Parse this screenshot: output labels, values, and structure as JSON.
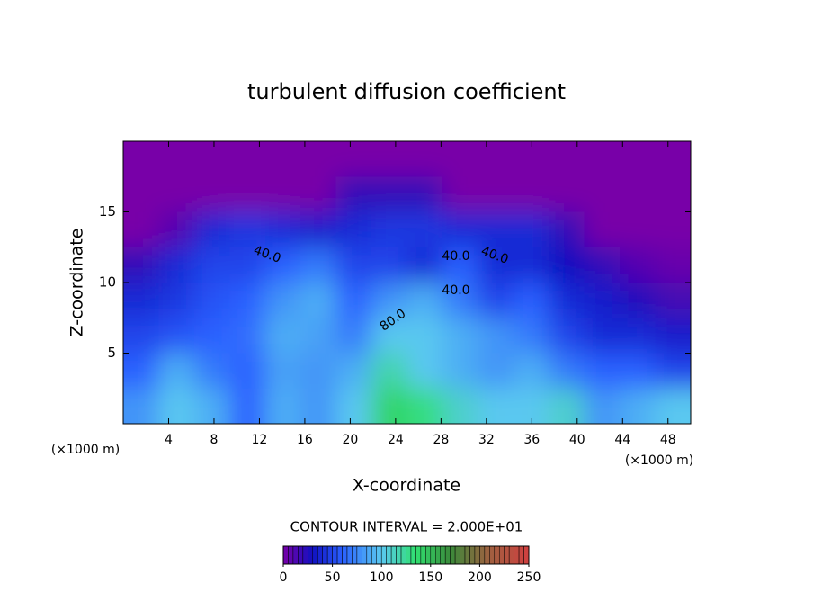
{
  "chart_data": {
    "type": "contour",
    "title": "turbulent diffusion coefficient",
    "xlabel": "X-coordinate",
    "ylabel": "Z-coordinate",
    "x_unit_label": "(×1000 m)",
    "z_unit_label": "(×1000 m)",
    "xlim": [
      0,
      50
    ],
    "ylim": [
      0,
      20
    ],
    "xticks": [
      4,
      8,
      12,
      16,
      20,
      24,
      28,
      32,
      36,
      40,
      44,
      48
    ],
    "yticks": [
      5,
      10,
      15
    ],
    "values": [
      [
        0,
        0,
        0,
        0,
        0,
        0,
        0,
        0,
        0,
        0,
        0,
        0,
        0,
        0,
        0,
        0
      ],
      [
        0,
        0,
        0,
        0,
        0,
        0,
        20,
        20,
        20,
        0,
        0,
        0,
        0,
        0,
        0,
        0
      ],
      [
        0,
        10,
        40,
        45,
        40,
        35,
        40,
        45,
        45,
        40,
        40,
        40,
        20,
        0,
        0,
        0
      ],
      [
        20,
        40,
        50,
        50,
        60,
        70,
        50,
        50,
        40,
        60,
        40,
        40,
        30,
        20,
        10,
        5
      ],
      [
        40,
        45,
        55,
        60,
        80,
        90,
        60,
        80,
        90,
        70,
        50,
        60,
        40,
        35,
        25,
        15
      ],
      [
        50,
        55,
        60,
        65,
        90,
        85,
        70,
        100,
        100,
        90,
        80,
        70,
        50,
        40,
        40,
        35
      ],
      [
        60,
        90,
        70,
        60,
        85,
        80,
        90,
        120,
        100,
        90,
        80,
        90,
        70,
        60,
        60,
        50
      ],
      [
        80,
        100,
        90,
        60,
        90,
        80,
        100,
        140,
        130,
        110,
        100,
        100,
        110,
        80,
        90,
        100
      ]
    ],
    "contour_labels": [
      {
        "value": 40,
        "label": "40.0"
      },
      {
        "value": 40,
        "label": "40.0"
      },
      {
        "value": 40,
        "label": "40.0"
      },
      {
        "value": 40,
        "label": "40.0"
      },
      {
        "value": 80,
        "label": "80.0"
      }
    ],
    "contour_interval_label": "CONTOUR INTERVAL = 2.000E+01",
    "colorbar_lim": [
      0,
      250
    ],
    "colorbar_ticks": [
      0,
      50,
      100,
      150,
      200,
      250
    ],
    "colorscale": [
      [
        0,
        "#7800a8"
      ],
      [
        30,
        "#1010c0"
      ],
      [
        60,
        "#2a60ff"
      ],
      [
        100,
        "#5ac8f0"
      ],
      [
        135,
        "#30e070"
      ],
      [
        170,
        "#3a8a3a"
      ],
      [
        210,
        "#a06040"
      ],
      [
        250,
        "#d04040"
      ]
    ]
  }
}
